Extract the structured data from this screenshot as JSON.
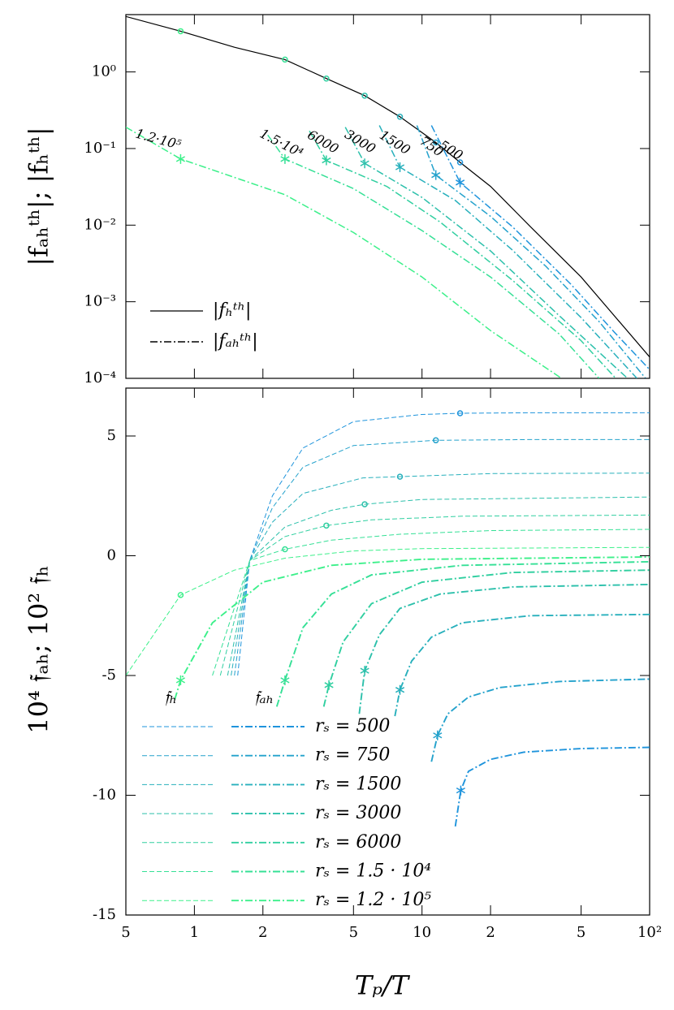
{
  "chart_data": [
    {
      "type": "line",
      "xscale": "log",
      "yscale": "log",
      "y_label": "|fₐₕᵗʰ|;   |fₕᵗʰ|",
      "xlim": [
        0.5,
        100
      ],
      "ylim": [
        0.0001,
        5.6
      ],
      "yticks": [
        {
          "value": 1,
          "label": "10⁰"
        },
        {
          "value": 0.1,
          "label": "10⁻¹"
        },
        {
          "value": 0.01,
          "label": "10⁻²"
        },
        {
          "value": 0.001,
          "label": "10⁻³"
        },
        {
          "value": 0.0001,
          "label": "10⁻⁴"
        }
      ],
      "reference": {
        "name": "|fₕᵗʰ|",
        "color": "#000000",
        "x": [
          0.5,
          0.87,
          1.5,
          2.5,
          3.8,
          5.6,
          8,
          11.5,
          14.7,
          20,
          30,
          50,
          100
        ],
        "values": [
          5.3,
          3.4,
          2.1,
          1.45,
          0.82,
          0.49,
          0.26,
          0.12,
          0.066,
          0.032,
          0.0095,
          0.0021,
          0.00019
        ]
      },
      "series_legend": "|fₐₕᵗʰ|",
      "series": [
        {
          "name": "500",
          "color": "#1f94dc",
          "x": [
            11,
            14.7,
            25,
            45,
            70,
            100
          ],
          "values": [
            0.2,
            0.036,
            0.0095,
            0.0017,
            0.0004,
            0.00013
          ],
          "h_marker": {
            "x": 14.7,
            "y": 0.066
          },
          "marker": {
            "x": 14.7,
            "y": 0.036
          }
        },
        {
          "name": "750",
          "color": "#24a2cc",
          "x": [
            9.5,
            11.5,
            20,
            35,
            60,
            96
          ],
          "values": [
            0.2,
            0.045,
            0.013,
            0.0029,
            0.00055,
            0.0001
          ],
          "h_marker": {
            "x": 11.5,
            "y": 0.12
          },
          "marker": {
            "x": 11.5,
            "y": 0.045
          }
        },
        {
          "name": "1500",
          "color": "#28b0bc",
          "x": [
            6.5,
            8,
            14,
            25,
            50,
            88
          ],
          "values": [
            0.2,
            0.057,
            0.021,
            0.0047,
            0.00062,
            0.0001
          ],
          "h_marker": {
            "x": 8,
            "y": 0.26
          },
          "marker": {
            "x": 8,
            "y": 0.057
          }
        },
        {
          "name": "3000",
          "color": "#2cc0ab",
          "x": [
            4.6,
            5.6,
            10,
            20,
            40,
            80
          ],
          "values": [
            0.19,
            0.064,
            0.023,
            0.0046,
            0.00066,
            0.0001
          ],
          "h_marker": {
            "x": 5.6,
            "y": 0.49
          },
          "marker": {
            "x": 5.6,
            "y": 0.064
          }
        },
        {
          "name": "6000",
          "color": "#30cfa0",
          "x": [
            3.2,
            3.8,
            7,
            12,
            25,
            50,
            71
          ],
          "values": [
            0.17,
            0.07,
            0.032,
            0.011,
            0.0019,
            0.00031,
            0.0001
          ],
          "h_marker": {
            "x": 3.8,
            "y": 0.82
          },
          "marker": {
            "x": 3.8,
            "y": 0.07
          }
        },
        {
          "name": "1.5·10⁴",
          "color": "#35e096",
          "x": [
            2.1,
            2.5,
            5,
            10,
            20,
            40,
            60
          ],
          "values": [
            0.15,
            0.073,
            0.03,
            0.0085,
            0.0021,
            0.00038,
            0.0001
          ],
          "h_marker": {
            "x": 2.5,
            "y": 1.45
          },
          "marker": {
            "x": 2.5,
            "y": 0.073
          }
        },
        {
          "name": "1.2·10⁵",
          "color": "#3cf08a",
          "x": [
            0.5,
            0.87,
            2.5,
            5,
            10,
            20,
            41
          ],
          "values": [
            0.19,
            0.073,
            0.025,
            0.008,
            0.0021,
            0.00042,
            0.0001
          ],
          "h_marker": {
            "x": 0.87,
            "y": 3.4
          },
          "marker": {
            "x": 0.87,
            "y": 0.073
          }
        }
      ]
    },
    {
      "type": "line",
      "xscale": "log",
      "yscale": "linear",
      "y_label": "10⁴ 𝔣ₐₕ;   10² 𝔣ₕ",
      "x_label": "Tₚ/T",
      "xlim": [
        0.5,
        100
      ],
      "ylim": [
        -15,
        7
      ],
      "xticks": [
        {
          "value": 0.5,
          "label": "5"
        },
        1,
        2,
        5,
        10,
        {
          "value": 20,
          "label": "2"
        },
        {
          "value": 50,
          "label": "5"
        },
        {
          "value": 100,
          "label": "10²"
        }
      ],
      "yticks": [
        5,
        0,
        -5,
        -10,
        -15
      ],
      "legend_titles": [
        "𝔣ₕ",
        "𝔣ₐₕ"
      ],
      "series": [
        {
          "name": "rₛ = 500",
          "color": "#1f94dc",
          "h_x": [
            1.55,
            1.75,
            2.2,
            3,
            5,
            10,
            14.7,
            30,
            100
          ],
          "h_values": [
            -5,
            -0.2,
            2.5,
            4.5,
            5.6,
            5.9,
            5.95,
            5.97,
            5.97
          ],
          "ah_x": [
            14,
            14.8,
            16,
            20,
            28,
            50,
            100
          ],
          "ah_values": [
            -11.3,
            -9.8,
            -9,
            -8.5,
            -8.2,
            -8.05,
            -8
          ],
          "h_marker": {
            "x": 14.7,
            "y": 5.95
          },
          "ah_marker": {
            "x": 14.8,
            "y": -9.8
          }
        },
        {
          "name": "rₛ = 750",
          "color": "#24a2cc",
          "h_x": [
            1.5,
            1.75,
            2.2,
            3,
            5,
            11.5,
            30,
            100
          ],
          "h_values": [
            -5,
            -0.2,
            2,
            3.7,
            4.6,
            4.82,
            4.85,
            4.85
          ],
          "ah_x": [
            11,
            11.7,
            13,
            16,
            22,
            40,
            100
          ],
          "ah_values": [
            -8.6,
            -7.5,
            -6.6,
            -5.9,
            -5.5,
            -5.25,
            -5.15
          ],
          "h_marker": {
            "x": 11.5,
            "y": 4.82
          },
          "ah_marker": {
            "x": 11.7,
            "y": -7.5
          }
        },
        {
          "name": "rₛ = 1500",
          "color": "#28b0bc",
          "h_x": [
            1.45,
            1.75,
            2.2,
            3,
            5.5,
            8,
            20,
            100
          ],
          "h_values": [
            -5,
            -0.2,
            1.4,
            2.6,
            3.25,
            3.3,
            3.43,
            3.45
          ],
          "ah_x": [
            7.6,
            8,
            9,
            11,
            15,
            30,
            100
          ],
          "ah_values": [
            -6.7,
            -5.6,
            -4.4,
            -3.4,
            -2.8,
            -2.5,
            -2.45
          ],
          "h_marker": {
            "x": 8,
            "y": 3.3
          },
          "ah_marker": {
            "x": 8,
            "y": -5.6
          }
        },
        {
          "name": "rₛ = 3000",
          "color": "#2cc0ab",
          "h_x": [
            1.4,
            1.75,
            2.5,
            4,
            5.6,
            10,
            100
          ],
          "h_values": [
            -5,
            -0.2,
            1.2,
            1.9,
            2.15,
            2.35,
            2.45
          ],
          "ah_x": [
            5.3,
            5.6,
            6.5,
            8,
            12,
            25,
            100
          ],
          "ah_values": [
            -6.6,
            -4.8,
            -3.3,
            -2.2,
            -1.6,
            -1.3,
            -1.2
          ],
          "h_marker": {
            "x": 5.6,
            "y": 2.15
          },
          "ah_marker": {
            "x": 5.6,
            "y": -4.8
          }
        },
        {
          "name": "rₛ = 6000",
          "color": "#30cfa0",
          "h_x": [
            1.3,
            1.75,
            2.5,
            3.8,
            6,
            15,
            100
          ],
          "h_values": [
            -5,
            -0.2,
            0.8,
            1.26,
            1.5,
            1.65,
            1.7
          ],
          "ah_x": [
            3.7,
            3.9,
            4.5,
            6,
            10,
            25,
            100
          ],
          "ah_values": [
            -6.3,
            -5.4,
            -3.6,
            -2,
            -1.1,
            -0.7,
            -0.6
          ],
          "h_marker": {
            "x": 3.8,
            "y": 1.26
          },
          "ah_marker": {
            "x": 3.9,
            "y": -5.4
          }
        },
        {
          "name": "rₛ = 1.5 · 10⁴",
          "color": "#35e096",
          "h_x": [
            1.2,
            1.75,
            2.5,
            4,
            8,
            20,
            100
          ],
          "h_values": [
            -5,
            -0.2,
            0.27,
            0.65,
            0.9,
            1.05,
            1.1
          ],
          "ah_x": [
            2.3,
            2.5,
            3,
            4,
            6,
            15,
            100
          ],
          "ah_values": [
            -6.3,
            -5.2,
            -3,
            -1.6,
            -0.8,
            -0.4,
            -0.25
          ],
          "h_marker": {
            "x": 2.5,
            "y": 0.27
          },
          "ah_marker": {
            "x": 2.5,
            "y": -5.2
          }
        },
        {
          "name": "rₛ = 1.2 · 10⁵",
          "color": "#3cf08a",
          "h_x": [
            0.5,
            0.87,
            1.5,
            2.5,
            5,
            10,
            100
          ],
          "h_values": [
            -5,
            -1.64,
            -0.6,
            -0.1,
            0.2,
            0.3,
            0.35
          ],
          "ah_x": [
            0.82,
            0.87,
            1.2,
            2,
            4,
            10,
            100
          ],
          "ah_values": [
            -6,
            -5.2,
            -2.8,
            -1.1,
            -0.4,
            -0.15,
            -0.05
          ],
          "h_marker": {
            "x": 0.87,
            "y": -1.64
          },
          "ah_marker": {
            "x": 0.87,
            "y": -5.2
          }
        }
      ]
    }
  ]
}
